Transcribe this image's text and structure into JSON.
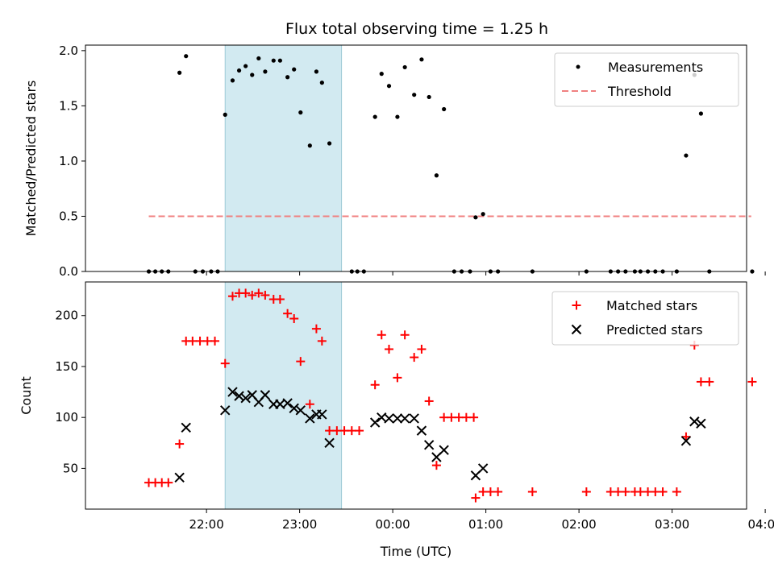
{
  "title": "Flux total observing time = 1.25 h",
  "colors": {
    "measure": "#000000",
    "threshold": "#f08080",
    "matched": "#ff0000",
    "predicted": "#000000",
    "span": "#add8e6"
  },
  "chart_data": [
    {
      "type": "scatter",
      "ylabel": "Matched/Predicted stars",
      "xlim": [
        -3.3,
        3.8
      ],
      "ylim": [
        0,
        2.05
      ],
      "yticks": [
        "0.0",
        "0.5",
        "1.0",
        "1.5",
        "2.0"
      ],
      "span": {
        "start": -1.8,
        "end": -0.55
      },
      "legend": {
        "position": "top-right",
        "measurements": "Measurements",
        "threshold": "Threshold"
      },
      "threshold": {
        "value": 0.5,
        "x": [
          -2.62,
          3.85
        ]
      },
      "measurements": [
        [
          -2.62,
          0
        ],
        [
          -2.55,
          0
        ],
        [
          -2.48,
          0
        ],
        [
          -2.41,
          0
        ],
        [
          -2.29,
          1.8
        ],
        [
          -2.22,
          1.95
        ],
        [
          -2.12,
          0
        ],
        [
          -2.04,
          0
        ],
        [
          -1.95,
          0
        ],
        [
          -1.88,
          0
        ],
        [
          -1.8,
          1.42
        ],
        [
          -1.72,
          1.73
        ],
        [
          -1.65,
          1.82
        ],
        [
          -1.58,
          1.86
        ],
        [
          -1.51,
          1.78
        ],
        [
          -1.44,
          1.93
        ],
        [
          -1.37,
          1.81
        ],
        [
          -1.28,
          1.91
        ],
        [
          -1.21,
          1.91
        ],
        [
          -1.13,
          1.76
        ],
        [
          -1.06,
          1.83
        ],
        [
          -0.99,
          1.44
        ],
        [
          -0.89,
          1.14
        ],
        [
          -0.82,
          1.81
        ],
        [
          -0.76,
          1.71
        ],
        [
          -0.68,
          1.16
        ],
        [
          -0.44,
          0
        ],
        [
          -0.38,
          0
        ],
        [
          -0.31,
          0
        ],
        [
          -0.19,
          1.4
        ],
        [
          -0.12,
          1.79
        ],
        [
          -0.04,
          1.68
        ],
        [
          0.05,
          1.4
        ],
        [
          0.13,
          1.85
        ],
        [
          0.23,
          1.6
        ],
        [
          0.31,
          1.92
        ],
        [
          0.39,
          1.58
        ],
        [
          0.47,
          0.87
        ],
        [
          0.55,
          1.47
        ],
        [
          0.66,
          0
        ],
        [
          0.74,
          0
        ],
        [
          0.83,
          0
        ],
        [
          0.89,
          0.49
        ],
        [
          0.97,
          0.52
        ],
        [
          1.05,
          0
        ],
        [
          1.13,
          0
        ],
        [
          1.5,
          0
        ],
        [
          2.08,
          0
        ],
        [
          2.34,
          0
        ],
        [
          2.42,
          0
        ],
        [
          2.5,
          0
        ],
        [
          2.6,
          0
        ],
        [
          2.66,
          0
        ],
        [
          2.74,
          0
        ],
        [
          2.82,
          0
        ],
        [
          2.9,
          0
        ],
        [
          3.05,
          0
        ],
        [
          3.15,
          1.05
        ],
        [
          3.24,
          1.78
        ],
        [
          3.31,
          1.43
        ],
        [
          3.4,
          0
        ],
        [
          3.86,
          0
        ]
      ]
    },
    {
      "type": "scatter",
      "xlabel": "Time (UTC)",
      "ylabel": "Count",
      "xlim": [
        -3.3,
        3.8
      ],
      "ylim": [
        10,
        233
      ],
      "yticks": [
        "50",
        "100",
        "150",
        "200"
      ],
      "xticks": [
        "22:00",
        "23:00",
        "00:00",
        "01:00",
        "02:00",
        "03:00",
        "04:00"
      ],
      "span": {
        "start": -1.8,
        "end": -0.55
      },
      "legend": {
        "position": "top-right",
        "matched": "Matched stars",
        "predicted": "Predicted stars"
      },
      "series": [
        {
          "name": "Matched stars",
          "points": [
            [
              -2.62,
              36
            ],
            [
              -2.55,
              36
            ],
            [
              -2.48,
              36
            ],
            [
              -2.41,
              36
            ],
            [
              -2.29,
              74
            ],
            [
              -2.22,
              175
            ],
            [
              -2.15,
              175
            ],
            [
              -2.07,
              175
            ],
            [
              -1.99,
              175
            ],
            [
              -1.91,
              175
            ],
            [
              -1.8,
              153
            ],
            [
              -1.72,
              219
            ],
            [
              -1.65,
              222
            ],
            [
              -1.58,
              222
            ],
            [
              -1.51,
              220
            ],
            [
              -1.44,
              222
            ],
            [
              -1.37,
              220
            ],
            [
              -1.28,
              216
            ],
            [
              -1.21,
              216
            ],
            [
              -1.13,
              202
            ],
            [
              -1.06,
              197
            ],
            [
              -0.99,
              155
            ],
            [
              -0.89,
              113
            ],
            [
              -0.82,
              187
            ],
            [
              -0.76,
              175
            ],
            [
              -0.68,
              87
            ],
            [
              -0.6,
              87
            ],
            [
              -0.52,
              87
            ],
            [
              -0.44,
              87
            ],
            [
              -0.36,
              87
            ],
            [
              -0.19,
              132
            ],
            [
              -0.12,
              181
            ],
            [
              -0.04,
              167
            ],
            [
              0.05,
              139
            ],
            [
              0.13,
              181
            ],
            [
              0.23,
              159
            ],
            [
              0.31,
              167
            ],
            [
              0.39,
              116
            ],
            [
              0.47,
              53
            ],
            [
              0.55,
              100
            ],
            [
              0.63,
              100
            ],
            [
              0.71,
              100
            ],
            [
              0.79,
              100
            ],
            [
              0.87,
              100
            ],
            [
              0.89,
              21
            ],
            [
              0.97,
              27
            ],
            [
              1.05,
              27
            ],
            [
              1.13,
              27
            ],
            [
              1.5,
              27
            ],
            [
              2.08,
              27
            ],
            [
              2.34,
              27
            ],
            [
              2.42,
              27
            ],
            [
              2.5,
              27
            ],
            [
              2.6,
              27
            ],
            [
              2.66,
              27
            ],
            [
              2.74,
              27
            ],
            [
              2.82,
              27
            ],
            [
              2.9,
              27
            ],
            [
              3.05,
              27
            ],
            [
              3.15,
              81
            ],
            [
              3.24,
              171
            ],
            [
              3.31,
              135
            ],
            [
              3.4,
              135
            ],
            [
              3.86,
              135
            ]
          ]
        },
        {
          "name": "Predicted stars",
          "points": [
            [
              -2.29,
              41
            ],
            [
              -2.22,
              90
            ],
            [
              -1.8,
              107
            ],
            [
              -1.72,
              125
            ],
            [
              -1.65,
              121
            ],
            [
              -1.58,
              119
            ],
            [
              -1.51,
              122
            ],
            [
              -1.44,
              115
            ],
            [
              -1.37,
              122
            ],
            [
              -1.28,
              113
            ],
            [
              -1.21,
              113
            ],
            [
              -1.13,
              114
            ],
            [
              -1.06,
              109
            ],
            [
              -0.99,
              107
            ],
            [
              -0.89,
              99
            ],
            [
              -0.82,
              103
            ],
            [
              -0.76,
              103
            ],
            [
              -0.68,
              75
            ],
            [
              -0.19,
              95
            ],
            [
              -0.12,
              100
            ],
            [
              -0.04,
              99
            ],
            [
              0.05,
              99
            ],
            [
              0.13,
              99
            ],
            [
              0.23,
              99
            ],
            [
              0.31,
              87
            ],
            [
              0.39,
              73
            ],
            [
              0.47,
              61
            ],
            [
              0.55,
              68
            ],
            [
              0.89,
              43
            ],
            [
              0.97,
              50
            ],
            [
              3.15,
              77
            ],
            [
              3.24,
              96
            ],
            [
              3.31,
              94
            ]
          ]
        }
      ]
    }
  ]
}
